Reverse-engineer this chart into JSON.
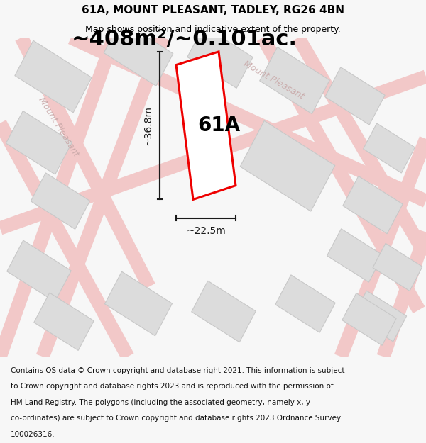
{
  "title": "61A, MOUNT PLEASANT, TADLEY, RG26 4BN",
  "subtitle": "Map shows position and indicative extent of the property.",
  "area_text": "~408m²/~0.101ac.",
  "label_61a": "61A",
  "dim_height": "~36.8m",
  "dim_width": "~22.5m",
  "footer_line1": "Contains OS data © Crown copyright and database right 2021. This information is subject",
  "footer_line2": "to Crown copyright and database rights 2023 and is reproduced with the permission of",
  "footer_line3": "HM Land Registry. The polygons (including the associated geometry, namely x, y",
  "footer_line4": "co-ordinates) are subject to Crown copyright and database rights 2023 Ordnance Survey",
  "footer_line5": "100026316.",
  "page_bg": "#f7f7f7",
  "map_bg": "#f0f0f0",
  "footer_bg": "#ffffff",
  "road_color": "#f2c8c8",
  "building_color": "#dcdcdc",
  "building_border": "#c8c8c8",
  "highlight_color": "#ee0000",
  "highlight_fill": "#ffffff",
  "street_label_color": "#c8a8a8",
  "dim_color": "#1a1a1a",
  "title_fontsize": 11,
  "subtitle_fontsize": 9,
  "area_fontsize": 22,
  "label_fontsize": 20,
  "footer_fontsize": 7.5,
  "street_fontsize": 9,
  "dim_fontsize": 10
}
